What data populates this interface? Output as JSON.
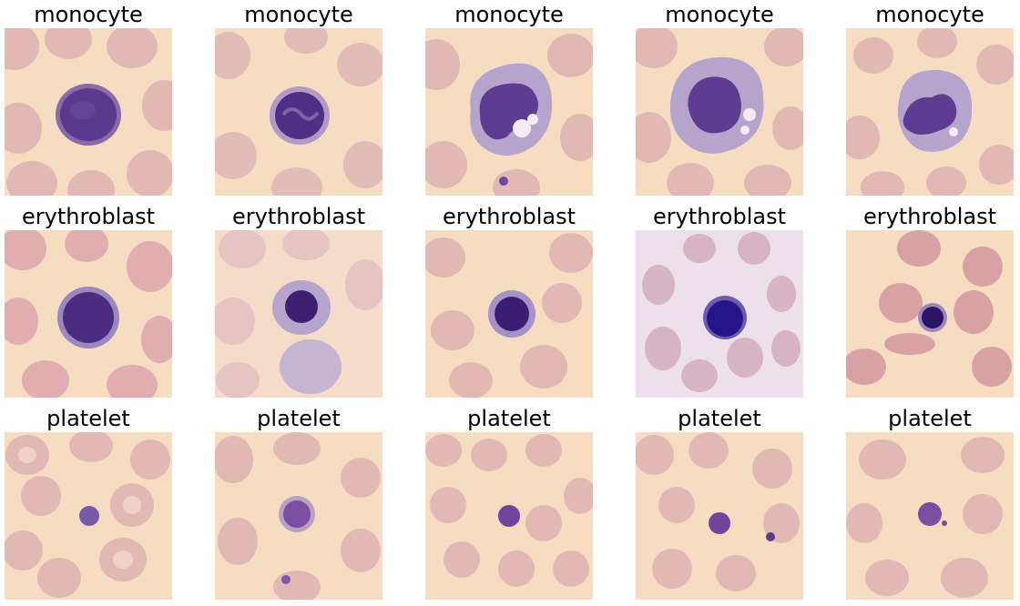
{
  "grid": {
    "rows": [
      {
        "items": [
          {
            "label": "monocyte"
          },
          {
            "label": "monocyte"
          },
          {
            "label": "monocyte"
          },
          {
            "label": "monocyte"
          },
          {
            "label": "monocyte"
          }
        ]
      },
      {
        "items": [
          {
            "label": "erythroblast"
          },
          {
            "label": "erythroblast"
          },
          {
            "label": "erythroblast"
          },
          {
            "label": "erythroblast"
          },
          {
            "label": "erythroblast"
          }
        ]
      },
      {
        "items": [
          {
            "label": "platelet"
          },
          {
            "label": "platelet"
          },
          {
            "label": "platelet"
          },
          {
            "label": "platelet"
          },
          {
            "label": "platelet"
          }
        ]
      }
    ]
  },
  "colors": {
    "background": "#f6dcc0",
    "background_alt": "#ecdde6",
    "rbc_fill": "#e3b8b3",
    "rbc_center": "#f0d2c6",
    "cytoplasm": "#b5a5cc",
    "nucleus": "#5a3a8c",
    "nucleus_dark": "#2e1a78"
  }
}
